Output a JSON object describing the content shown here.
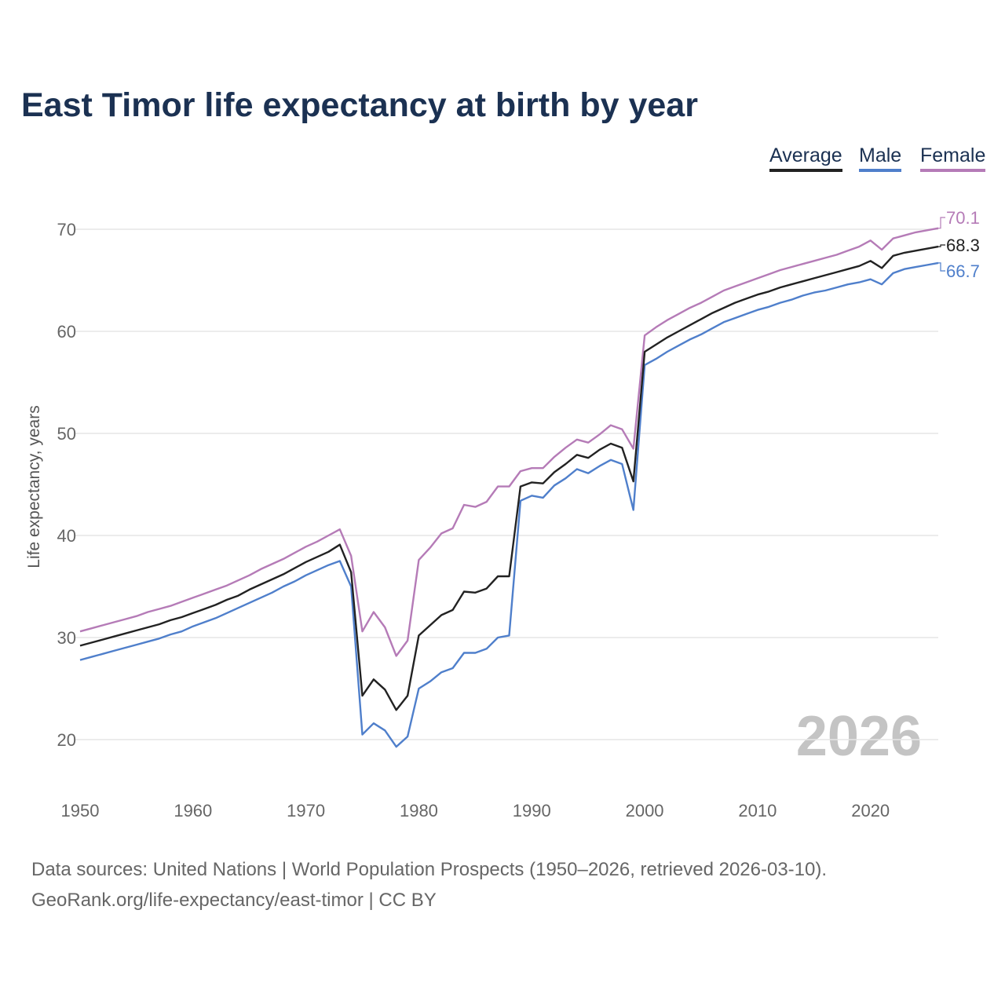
{
  "title": "East Timor life expectancy at birth by year",
  "legend": [
    {
      "label": "Average",
      "color": "#222222"
    },
    {
      "label": "Male",
      "color": "#4f7fcb"
    },
    {
      "label": "Female",
      "color": "#b57bb7"
    }
  ],
  "watermark": "2026",
  "footer": {
    "line1": "Data sources: United Nations | World Population Prospects (1950–2026, retrieved 2026-03-10).",
    "line2": "GeoRank.org/life-expectancy/east-timor | CC BY"
  },
  "chart_data": {
    "type": "line",
    "title": "East Timor life expectancy at birth by year",
    "xlabel": "",
    "ylabel": "Life expectancy, years",
    "xlim": [
      1950,
      2026
    ],
    "ylim": [
      15,
      72
    ],
    "xticks": [
      1950,
      1960,
      1970,
      1980,
      1990,
      2000,
      2010,
      2020
    ],
    "yticks": [
      20,
      30,
      40,
      50,
      60,
      70
    ],
    "grid": true,
    "legend_position": "top-right",
    "x_start": 1950,
    "series": [
      {
        "name": "Average",
        "color": "#222222",
        "end_label": "68.3",
        "values": [
          29.2,
          29.5,
          29.8,
          30.1,
          30.4,
          30.7,
          31.0,
          31.3,
          31.7,
          32.0,
          32.4,
          32.8,
          33.2,
          33.7,
          34.1,
          34.7,
          35.2,
          35.7,
          36.2,
          36.8,
          37.4,
          37.9,
          38.4,
          39.1,
          36.4,
          24.3,
          25.9,
          24.9,
          22.9,
          24.3,
          30.2,
          31.2,
          32.2,
          32.7,
          34.5,
          34.4,
          34.8,
          36.0,
          36.0,
          44.8,
          45.2,
          45.1,
          46.2,
          47.0,
          47.9,
          47.6,
          48.4,
          49.0,
          48.6,
          45.3,
          58.0,
          58.7,
          59.4,
          60.0,
          60.6,
          61.2,
          61.8,
          62.3,
          62.8,
          63.2,
          63.6,
          63.9,
          64.3,
          64.6,
          64.9,
          65.2,
          65.5,
          65.8,
          66.1,
          66.4,
          66.9,
          66.2,
          67.4,
          67.7,
          67.9,
          68.1,
          68.3
        ]
      },
      {
        "name": "Male",
        "color": "#4f7fcb",
        "end_label": "66.7",
        "values": [
          27.8,
          28.1,
          28.4,
          28.7,
          29.0,
          29.3,
          29.6,
          29.9,
          30.3,
          30.6,
          31.1,
          31.5,
          31.9,
          32.4,
          32.9,
          33.4,
          33.9,
          34.4,
          35.0,
          35.5,
          36.1,
          36.6,
          37.1,
          37.5,
          35.0,
          20.5,
          21.6,
          20.9,
          19.3,
          20.3,
          25.0,
          25.7,
          26.6,
          27.0,
          28.5,
          28.5,
          28.9,
          30.0,
          30.2,
          43.4,
          43.9,
          43.7,
          44.9,
          45.6,
          46.5,
          46.1,
          46.8,
          47.4,
          47.0,
          42.5,
          56.7,
          57.3,
          58.0,
          58.6,
          59.2,
          59.7,
          60.3,
          60.9,
          61.3,
          61.7,
          62.1,
          62.4,
          62.8,
          63.1,
          63.5,
          63.8,
          64.0,
          64.3,
          64.6,
          64.8,
          65.1,
          64.6,
          65.7,
          66.1,
          66.3,
          66.5,
          66.7
        ]
      },
      {
        "name": "Female",
        "color": "#b57bb7",
        "end_label": "70.1",
        "values": [
          30.6,
          30.9,
          31.2,
          31.5,
          31.8,
          32.1,
          32.5,
          32.8,
          33.1,
          33.5,
          33.9,
          34.3,
          34.7,
          35.1,
          35.6,
          36.1,
          36.7,
          37.2,
          37.7,
          38.3,
          38.9,
          39.4,
          40.0,
          40.6,
          38.0,
          30.6,
          32.5,
          31.0,
          28.2,
          29.7,
          37.6,
          38.8,
          40.2,
          40.7,
          43.0,
          42.8,
          43.3,
          44.8,
          44.8,
          46.3,
          46.6,
          46.6,
          47.7,
          48.6,
          49.4,
          49.1,
          49.9,
          50.8,
          50.4,
          48.5,
          59.6,
          60.4,
          61.1,
          61.7,
          62.3,
          62.8,
          63.4,
          64.0,
          64.4,
          64.8,
          65.2,
          65.6,
          66.0,
          66.3,
          66.6,
          66.9,
          67.2,
          67.5,
          67.9,
          68.3,
          68.9,
          68.0,
          69.1,
          69.4,
          69.7,
          69.9,
          70.1
        ]
      }
    ]
  }
}
